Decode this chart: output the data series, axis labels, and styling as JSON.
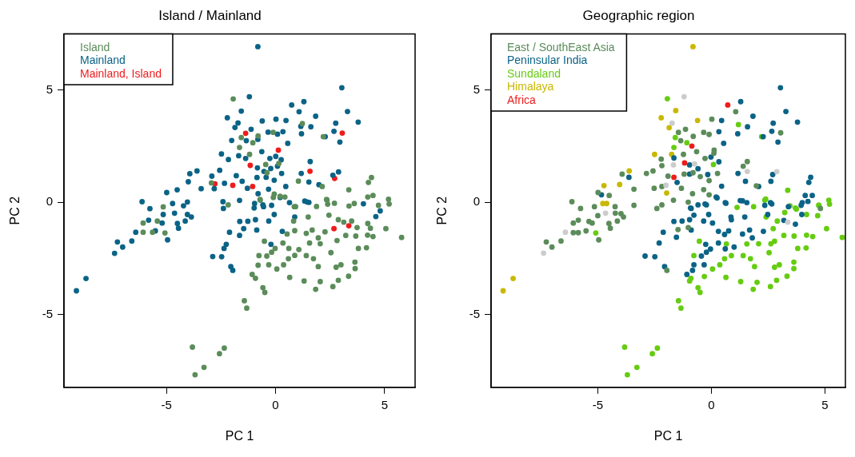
{
  "chart_data": [
    {
      "type": "scatter",
      "title": "Island / Mainland",
      "xlabel": "PC 1",
      "ylabel": "PC 2",
      "xlim": [
        -9.7,
        6.4
      ],
      "ylim": [
        -8.25,
        7.5
      ],
      "xticks": [
        -5,
        0,
        5
      ],
      "yticks": [
        -5,
        0,
        5
      ],
      "grid": false,
      "legend": "top left",
      "marker": "circle",
      "series": [
        {
          "name": "Island",
          "color": "#5b8c5a",
          "x": [
            -1.94,
            -0.11,
            1.23,
            -1.57,
            -0.8,
            -1.04,
            -1.65,
            -1.19,
            -0.45,
            -0.39,
            0.15,
            2.19,
            4.4,
            4.26,
            3.36,
            1.05,
            2.14,
            -2.94,
            -2.17,
            -5.15,
            -0.71,
            -0.06,
            0.21,
            0.43,
            0.86,
            1.88,
            2.34,
            2.39,
            2.7,
            3.37,
            3.61,
            4.23,
            4.47,
            5.18,
            5.21,
            4.72,
            -6.07,
            -5.42,
            -6.07,
            -5.64,
            -5.07,
            -0.7,
            -0.1,
            0.92,
            0.83,
            0.53,
            0.88,
            1.41,
            1.68,
            1.5,
            2.36,
            2.45,
            2.88,
            3.13,
            3.49,
            3.74,
            4.35,
            4.23,
            5.06,
            5.78,
            4.47,
            4.22,
            3.68,
            3.22,
            2.82,
            2.27,
            1.96,
            1.56,
            2.05,
            4.17,
            3.8,
            2.54,
            1.74,
            1.41,
            0.88,
            0.59,
            1.07,
            0.61,
            0.34,
            -0.02,
            -0.18,
            -0.4,
            -0.76,
            -0.51,
            -0.31,
            -0.8,
            0.06,
            0.37,
            0.65,
            1.31,
            2.05,
            1.96,
            2.78,
            3.0,
            3.64,
            3.65,
            3.35,
            2.88,
            2.63,
            1.84,
            -0.58,
            -0.49,
            -0.92,
            -1.07,
            -1.43,
            -1.32,
            -3.81,
            -2.35,
            -2.57,
            -3.28,
            -3.69
          ],
          "values": [
            4.6,
            3.11,
            3.5,
            2.88,
            2.95,
            2.65,
            2.44,
            2.13,
            1.68,
            1.31,
            1.72,
            2.92,
            1.1,
            0.88,
            0.55,
            0.94,
            0.7,
            0.86,
            -0.12,
            -0.21,
            0.12,
            0.36,
            0.26,
            0.23,
            -0.2,
            -0.19,
            0.12,
            -0.09,
            -0.05,
            -0.17,
            -0.06,
            0.23,
            0.3,
            0.13,
            -0.08,
            -0.14,
            -0.93,
            -0.84,
            -1.34,
            -1.34,
            -1.37,
            0.09,
            0.21,
            -0.2,
            -0.84,
            -1.42,
            -1.27,
            -1.39,
            -1.24,
            -0.66,
            0.09,
            -0.58,
            -0.78,
            -0.89,
            -0.84,
            -1.13,
            -1.16,
            -0.95,
            -1.18,
            -1.57,
            -1.53,
            -1.47,
            -1.51,
            -1.48,
            -1.71,
            -1.32,
            -1.59,
            -1.82,
            -1.85,
            -2.03,
            -2.06,
            -2.25,
            -2.52,
            -2.38,
            -2.37,
            -2.52,
            -2.11,
            -2.06,
            -1.82,
            -2.06,
            -2.23,
            -2.4,
            -2.38,
            -1.74,
            -2.79,
            -2.81,
            -2.98,
            -2.79,
            -3.35,
            -3.51,
            -3.54,
            -2.87,
            -2.9,
            -2.79,
            -2.67,
            -2.96,
            -3.3,
            -3.48,
            -3.76,
            -3.88,
            -3.81,
            -4.02,
            -3.39,
            -3.22,
            -4.39,
            -4.72,
            -6.46,
            -6.5,
            -6.75,
            -7.36,
            -7.69
          ]
        },
        {
          "name": "Mainland",
          "color": "#0b6386",
          "x": [
            -0.81,
            3.04,
            -1.2,
            1.3,
            0.74,
            -1.57,
            1.08,
            -2.21,
            1.84,
            3.3,
            3.79,
            -0.61,
            0.02,
            0.48,
            2.76,
            -1.72,
            1.16,
            1.62,
            -1.86,
            -1.12,
            -0.34,
            0.09,
            0.34,
            1.19,
            2.68,
            2.95,
            2.28,
            -0.81,
            -1.34,
            0.56,
            -2.01,
            -2.48,
            -1.69,
            -0.63,
            -0.26,
            0.01,
            0.26,
            -2.16,
            -1.37,
            -0.83,
            -0.53,
            -0.22,
            0.09,
            1.59,
            -2.56,
            -1.8,
            -0.85,
            -0.43,
            -0.06,
            0.28,
            1.18,
            2.89,
            2.63,
            -3.93,
            -3.6,
            -4.0,
            -4.51,
            -4.99,
            -3.41,
            -2.92,
            -2.81,
            -2.34,
            -1.53,
            -1.29,
            -0.8,
            -0.32,
            0.47,
            1.53,
            1.99,
            -6.12,
            -4.72,
            -4.04,
            -2.41,
            -1.65,
            -0.96,
            -0.58,
            0.64,
            1.34,
            1.53,
            4.03,
            -5.76,
            -4.22,
            -5.15,
            -4.63,
            -4.04,
            -3.86,
            -5.82,
            -5.2,
            -4.5,
            -4.14,
            -5.51,
            -6.41,
            -4.45,
            -4.95,
            -7.25,
            -6.59,
            -7.01,
            -7.38,
            -8.69,
            -9.13,
            -2.39,
            -1.64,
            -1.27,
            -0.92,
            -0.55,
            -0.18,
            -0.06,
            -0.31,
            -0.86,
            -1.46,
            -2.11,
            -1.65,
            -2.26,
            -2.36,
            -2.88,
            -2.47,
            -2.05,
            -1.96,
            -0.98,
            0.21,
            1.45,
            0.88,
            0.31,
            -0.21,
            4.8,
            4.6
          ],
          "values": [
            6.93,
            5.1,
            4.7,
            4.48,
            4.33,
            4.06,
            4.03,
            3.76,
            3.83,
            4.04,
            3.57,
            3.62,
            3.7,
            3.64,
            3.52,
            3.53,
            3.38,
            3.36,
            3.33,
            3.25,
            3.12,
            3.03,
            3.14,
            3.05,
            3.16,
            2.68,
            2.92,
            2.8,
            2.74,
            2.62,
            2.75,
            2.15,
            2.07,
            2.25,
            1.95,
            2.04,
            1.89,
            1.9,
            1.95,
            1.53,
            1.37,
            1.5,
            1.6,
            1.81,
            1.42,
            1.18,
            1.1,
            1.11,
            0.98,
            1.28,
            1.28,
            1.35,
            1.2,
            1.27,
            1.39,
            0.91,
            0.55,
            0.43,
            0.6,
            1.16,
            0.6,
            0.84,
            0.93,
            0.62,
            0.38,
            0.58,
            0.7,
            0.9,
            0.78,
            0.02,
            -0.06,
            0.01,
            0.02,
            0.08,
            -0.06,
            -0.12,
            -0.02,
            0.05,
            -0.01,
            -0.07,
            -0.29,
            -0.16,
            -0.55,
            -0.49,
            -0.55,
            -0.66,
            -0.8,
            -0.93,
            -0.95,
            -0.84,
            -1.28,
            -1.34,
            -1.16,
            -1.68,
            -1.77,
            -1.73,
            -2.0,
            -2.28,
            -3.4,
            -3.95,
            -0.28,
            -0.86,
            -0.85,
            -0.78,
            -0.2,
            -0.14,
            -0.55,
            -0.84,
            -1.24,
            -1.18,
            -1.34,
            -1.48,
            -1.88,
            -2.06,
            -2.42,
            -2.43,
            -2.87,
            -3.04,
            -0.26,
            0.21,
            0.01,
            -0.66,
            -1.3,
            -1.88,
            -0.39,
            -0.64
          ]
        },
        {
          "name": "Mainland, Island",
          "color": "#ee1c1c",
          "x": [
            -1.37,
            0.13,
            -1.16,
            -2.78,
            -1.96,
            -1.05,
            1.58,
            3.06,
            2.71,
            2.68,
            3.36
          ],
          "values": [
            3.07,
            2.32,
            1.64,
            0.82,
            0.75,
            0.7,
            1.38,
            3.08,
            1.06,
            -1.18,
            -1.05
          ]
        }
      ]
    },
    {
      "type": "scatter",
      "title": "Geographic region",
      "xlabel": "PC 1",
      "ylabel": "PC 2",
      "xlim": [
        -9.7,
        5.9
      ],
      "ylim": [
        -8.25,
        7.5
      ],
      "xticks": [
        -5,
        0,
        5
      ],
      "yticks": [
        -5,
        0,
        5
      ],
      "grid": false,
      "legend": "top left",
      "marker": "circle",
      "series": [
        {
          "color": "#cccccc",
          "x": [
            -1.2,
            -1.73,
            -1.67,
            -0.74,
            1.58,
            2.88,
            -2.0,
            -4.66,
            -6.43,
            -7.39,
            3.36
          ],
          "values": [
            4.7,
            3.52,
            1.66,
            1.71,
            1.37,
            1.36,
            0.75,
            -0.49,
            -1.34,
            -2.27,
            -0.89
          ]
        },
        {
          "name": "East / SouthEast Asia",
          "color": "#5b8c5a",
          "x": [
            1.07,
            0.02,
            -1.45,
            -1.14,
            -0.34,
            -0.1,
            -0.8,
            -1.35,
            -0.65,
            0.12,
            0.11,
            -2.21,
            -1.23,
            -0.28,
            -2.86,
            -2.57,
            -2.18,
            -1.91,
            -1.2,
            -0.81,
            -0.49,
            -0.1,
            0.27,
            1.4,
            1.58,
            1.98,
            3.05,
            -3.93,
            -3.41,
            -4.5,
            -4.99,
            -2.52,
            -2.18,
            -1.32,
            -0.83,
            -0.34,
            -0.1,
            -6.14,
            -5.76,
            -5.15,
            -4.24,
            -3.41,
            -2.4,
            -2.18,
            -1.67,
            -1.02,
            4.8,
            -5.0,
            -4.23,
            -3.98,
            -3.87,
            -5.86,
            -6.08,
            -5.39,
            -5.25,
            -4.51,
            -4.14,
            -5.52,
            -6.08,
            -5.86,
            -4.45,
            -4.96,
            -7.27,
            -6.62,
            -7.02,
            -1.47,
            -1.02,
            -1.96
          ],
          "values": [
            4.03,
            3.7,
            3.11,
            3.25,
            3.11,
            3.02,
            2.93,
            2.74,
            2.25,
            2.32,
            2.18,
            1.92,
            2.13,
            1.95,
            1.28,
            1.39,
            1.63,
            1.16,
            1.25,
            1.31,
            1.14,
            0.96,
            1.28,
            1.6,
            1.81,
            0.73,
            3.09,
            1.25,
            0.58,
            0.3,
            0.43,
            0.62,
            0.7,
            0.62,
            0.38,
            0.56,
            0.33,
            0.02,
            -0.28,
            -0.2,
            -0.2,
            -0.14,
            -0.28,
            -0.12,
            0.09,
            0.0,
            -0.28,
            -0.6,
            -0.49,
            -0.51,
            -0.66,
            -0.8,
            -0.93,
            -0.86,
            -0.93,
            -0.95,
            -0.84,
            -1.28,
            -1.36,
            -1.36,
            -1.16,
            -1.68,
            -1.77,
            -1.73,
            -2.0,
            -1.22,
            -1.13,
            -3.04
          ]
        },
        {
          "name": "Peninsular India",
          "color": "#0b6386",
          "x": [
            3.04,
            1.29,
            1.83,
            3.28,
            3.79,
            0.45,
            2.72,
            1.59,
            1.16,
            0.33,
            2.66,
            2.93,
            2.28,
            0.54,
            -0.02,
            0.33,
            -1.65,
            -0.96,
            -0.59,
            -0.16,
            -0.96,
            -1.51,
            1.17,
            1.5,
            2.62,
            2.7,
            4.37,
            4.29,
            -3.63,
            -4.84,
            0.45,
            2.08,
            0.61,
            1.37,
            2.6,
            4.13,
            4.44,
            4.0,
            -0.59,
            -0.89,
            -0.28,
            0.21,
            -0.92,
            -0.22,
            0.25,
            0.64,
            1.27,
            1.56,
            2.35,
            2.66,
            3.39,
            3.95,
            4.25,
            3.98,
            -1.65,
            -1.29,
            -0.96,
            -0.77,
            -0.12,
            -0.34,
            0.05,
            0.88,
            0.86,
            1.47,
            2.48,
            3.19,
            3.7,
            -2.12,
            -0.89,
            -1.54,
            0.31,
            0.76,
            0.58,
            1.37,
            1.68,
            1.8,
            2.29,
            0.31,
            0.61,
            1.0,
            -0.25,
            -0.04,
            -0.44,
            -0.22,
            -2.3,
            -2.92,
            -2.49,
            -2.06,
            -0.77,
            -0.83,
            -1.08,
            -0.32
          ],
          "values": [
            5.1,
            4.48,
            3.83,
            4.04,
            3.57,
            3.64,
            3.52,
            3.36,
            3.05,
            3.14,
            3.16,
            2.68,
            2.92,
            2.62,
            2.01,
            1.8,
            1.97,
            1.66,
            1.49,
            1.23,
            1.25,
            0.88,
            1.28,
            0.93,
            0.93,
            1.23,
            1.11,
            0.88,
            1.11,
            0.33,
            0.71,
            0.7,
            -0.02,
            0.06,
            -0.02,
            0.3,
            0.3,
            -0.02,
            -0.12,
            -0.28,
            -0.08,
            0.23,
            -0.26,
            -0.12,
            0.19,
            -0.05,
            0.07,
            -0.02,
            -0.14,
            -0.08,
            -0.2,
            -0.14,
            0.03,
            -0.55,
            -0.86,
            -0.84,
            -0.78,
            -0.58,
            -0.55,
            -0.84,
            -0.93,
            -0.78,
            -0.66,
            -0.66,
            -0.55,
            -0.81,
            -0.98,
            -1.34,
            -1.24,
            -1.56,
            -1.3,
            -1.28,
            -1.44,
            -1.42,
            -1.24,
            -1.59,
            -1.3,
            -1.82,
            -2.08,
            -2.0,
            -1.88,
            -2.09,
            -2.4,
            -2.23,
            -1.82,
            -2.4,
            -2.43,
            -2.87,
            -2.79,
            -3.04,
            -3.22,
            -2.79
          ]
        },
        {
          "name": "Sundaland",
          "color": "#66cc11",
          "x": [
            -1.94,
            1.19,
            -1.59,
            -1.65,
            -1.08,
            0.09,
            2.21,
            3.36,
            2.35,
            1.86,
            1.13,
            5.17,
            5.2,
            4.74,
            3.7,
            -5.09,
            2.39,
            2.41,
            2.72,
            2.9,
            3.23,
            3.46,
            3.74,
            4.19,
            4.68,
            4.72,
            5.07,
            5.76,
            4.46,
            4.19,
            3.64,
            3.19,
            2.78,
            2.62,
            2.08,
            1.56,
            0.66,
            -0.53,
            4.17,
            3.8,
            2.54,
            1.72,
            1.4,
            0.88,
            0.58,
            -0.77,
            0.37,
            0.05,
            -0.31,
            -0.9,
            -0.96,
            0.64,
            1.29,
            2.01,
            1.9,
            2.78,
            2.99,
            3.63,
            3.63,
            3.33,
            2.87,
            2.6,
            1.84,
            -0.59,
            -0.5,
            -1.45,
            -1.34,
            -3.82,
            -2.38,
            -2.6,
            -3.28,
            -3.7
          ],
          "values": [
            4.61,
            3.46,
            2.88,
            2.44,
            2.65,
            1.68,
            2.92,
            0.53,
            0.09,
            -0.2,
            -0.23,
            0.09,
            -0.09,
            -0.14,
            -0.26,
            -1.37,
            0.14,
            -0.66,
            -1.18,
            -0.84,
            -0.46,
            -0.16,
            -0.31,
            -0.55,
            -0.6,
            -0.14,
            -1.18,
            -1.57,
            -1.53,
            -1.47,
            -1.51,
            -1.48,
            -1.74,
            -1.85,
            -1.85,
            -1.86,
            -1.86,
            -1.74,
            -2.04,
            -2.06,
            -2.25,
            -2.52,
            -2.38,
            -2.38,
            -2.52,
            -2.38,
            -2.79,
            -2.98,
            -3.31,
            -3.39,
            -3.51,
            -3.35,
            -3.54,
            -3.57,
            -2.87,
            -2.9,
            -2.79,
            -2.67,
            -2.96,
            -3.3,
            -3.48,
            -3.76,
            -3.88,
            -3.81,
            -4.02,
            -4.39,
            -4.72,
            -6.46,
            -6.5,
            -6.75,
            -7.36,
            -7.69
          ]
        },
        {
          "name": "Himalaya",
          "color": "#c9b800",
          "x": [
            -0.81,
            -1.57,
            -2.21,
            -0.61,
            -1.86,
            -2.5,
            -1.75,
            -3.62,
            -4.04,
            -4.73,
            -1.97,
            -4.78,
            -4.61,
            -8.73,
            -9.17
          ],
          "values": [
            6.93,
            4.08,
            3.76,
            3.64,
            3.32,
            2.13,
            2.13,
            1.39,
            0.79,
            0.74,
            0.41,
            -0.06,
            -0.06,
            -3.4,
            -3.95
          ]
        },
        {
          "name": "Africa",
          "color": "#ee1c1c",
          "x": [
            0.72,
            -0.86,
            -1.18,
            -1.65
          ],
          "values": [
            4.33,
            2.5,
            1.75,
            1.11
          ]
        }
      ]
    }
  ]
}
